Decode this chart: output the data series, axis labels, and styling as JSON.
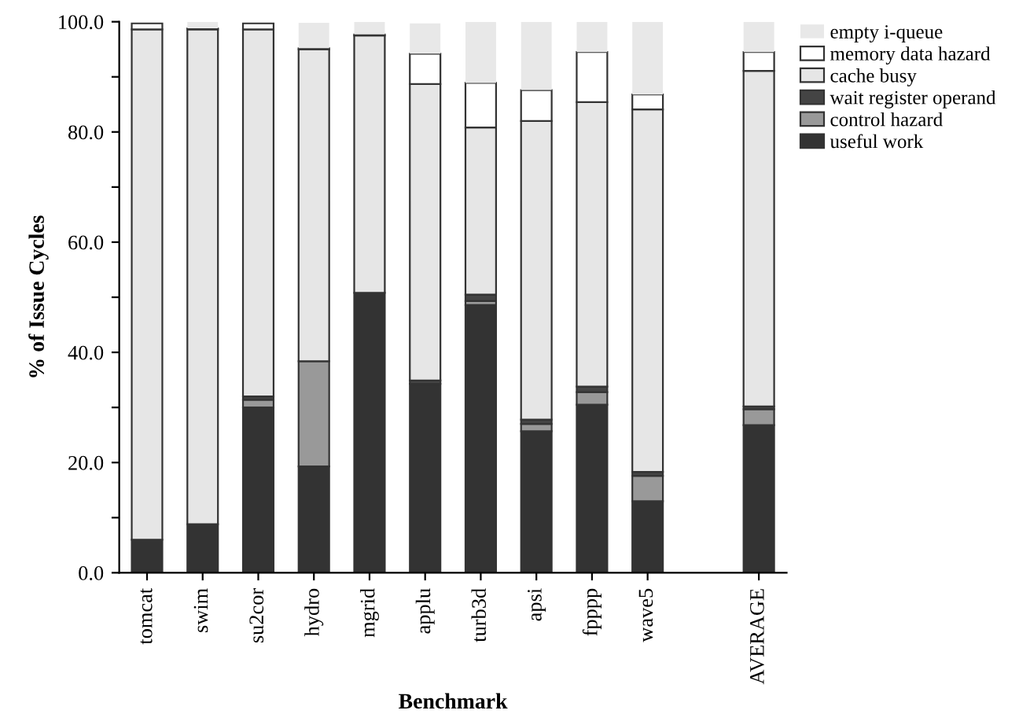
{
  "chart_data": {
    "type": "bar",
    "stacked": true,
    "xlabel": "Benchmark",
    "ylabel": "% of Issue Cycles",
    "categories": [
      "tomcat",
      "swim",
      "su2cor",
      "hydro",
      "mgrid",
      "applu",
      "turb3d",
      "apsi",
      "fpppp",
      "wave5",
      null,
      "AVERAGE"
    ],
    "series": [
      {
        "name": "useful work",
        "color": "#333333",
        "values": [
          6.0,
          8.8,
          30.0,
          19.3,
          50.8,
          34.3,
          48.6,
          25.7,
          30.5,
          13.0,
          null,
          26.8
        ]
      },
      {
        "name": "control hazard",
        "color": "#999999",
        "values": [
          0,
          0,
          1.4,
          19.1,
          0,
          null,
          0.7,
          1.3,
          2.3,
          4.6,
          null,
          2.9
        ]
      },
      {
        "name": "wait register operand",
        "color": "#444444",
        "values": [
          0,
          0,
          0.6,
          null,
          0,
          0.6,
          1.2,
          0.8,
          1.0,
          0.7,
          null,
          0.5
        ]
      },
      {
        "name": "cache busy",
        "color": "#e6e6e6",
        "values": [
          92.6,
          89.8,
          66.6,
          56.6,
          46.7,
          53.8,
          30.3,
          54.2,
          51.6,
          65.8,
          null,
          60.9
        ]
      },
      {
        "name": "memory data hazard",
        "color": "#ffffff",
        "values": [
          1.1,
          0.2,
          1.1,
          0.2,
          0.2,
          5.5,
          8.1,
          5.6,
          9.1,
          2.7,
          null,
          3.4
        ]
      },
      {
        "name": "empty i-queue",
        "color": "#e8e8e8",
        "values": [
          null,
          1.2,
          null,
          4.6,
          2.3,
          5.5,
          11.1,
          12.4,
          5.5,
          13.2,
          null,
          5.5
        ]
      }
    ],
    "ylim": [
      0,
      100
    ],
    "yticks": [
      {
        "value": 0,
        "label": "0.0"
      },
      {
        "value": 10,
        "label": null
      },
      {
        "value": 20,
        "label": "20.0"
      },
      {
        "value": 30,
        "label": null
      },
      {
        "value": 40,
        "label": "40.0"
      },
      {
        "value": 50,
        "label": null
      },
      {
        "value": 60,
        "label": "60.0"
      },
      {
        "value": 70,
        "label": null
      },
      {
        "value": 80,
        "label": "80.0"
      },
      {
        "value": 90,
        "label": null
      },
      {
        "value": 100,
        "label": "100.0"
      }
    ],
    "grid": false,
    "legend": "top right"
  }
}
